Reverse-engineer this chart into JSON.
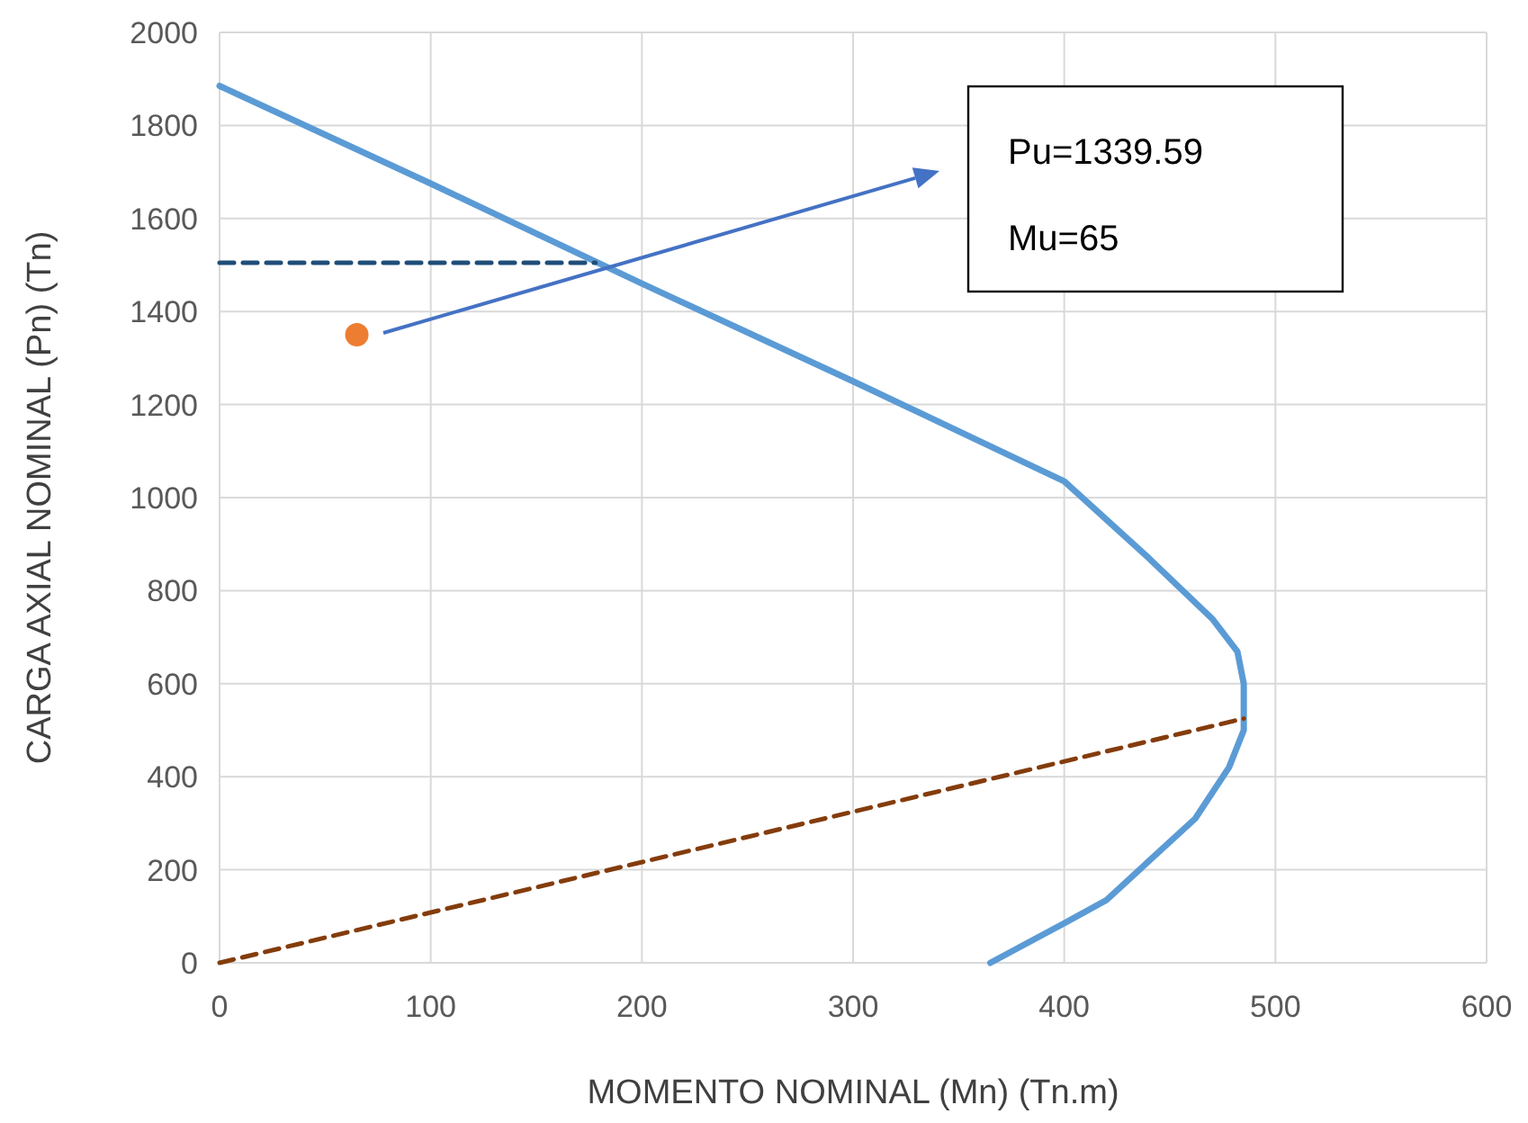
{
  "chart_data": {
    "type": "line",
    "xlabel": "MOMENTO NOMINAL (Mn) (Tn.m)",
    "ylabel": "CARGA AXIAL NOMINAL (Pn) (Tn)",
    "xlim": [
      0,
      600
    ],
    "xticks": [
      0,
      100,
      200,
      300,
      400,
      500,
      600
    ],
    "ylim": [
      0,
      2000
    ],
    "yticks": [
      0,
      200,
      400,
      600,
      800,
      1000,
      1200,
      1400,
      1600,
      1800,
      2000
    ],
    "grid": true,
    "series": [
      {
        "type": "line",
        "color": "#5b9bd5",
        "line_style": "solid",
        "marker": "none",
        "x": [
          0,
          100,
          200,
          300,
          400,
          440,
          470,
          482,
          485,
          485,
          478,
          462,
          420,
          400,
          365
        ],
        "values": [
          1885,
          1675,
          1460,
          1250,
          1035,
          870,
          740,
          669,
          600,
          500,
          420,
          310,
          135,
          85,
          0
        ]
      },
      {
        "type": "line",
        "color": "#1f4e79",
        "line_style": "dashed",
        "marker": "none",
        "x": [
          0,
          178
        ],
        "values": [
          1505,
          1505
        ]
      },
      {
        "type": "line",
        "color": "#843c0c",
        "line_style": "dashed",
        "marker": "none",
        "x": [
          0,
          485
        ],
        "values": [
          0,
          525
        ]
      },
      {
        "type": "scatter",
        "color": "#ed7d31",
        "marker": "circle",
        "x": [
          65
        ],
        "values": [
          1350
        ]
      }
    ],
    "annotations": [
      "Pu=1339.59",
      "Mu=65"
    ]
  }
}
